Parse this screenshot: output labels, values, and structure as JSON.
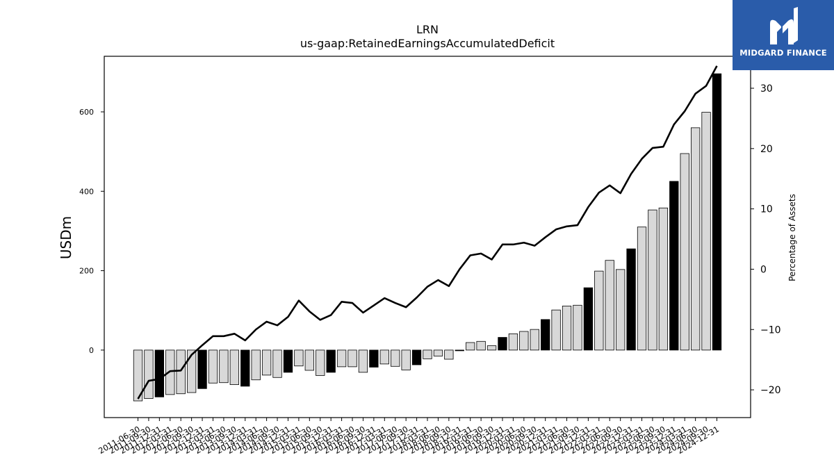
{
  "chart_data": {
    "type": "bar+line",
    "title": "LRN",
    "subtitle": "us-gaap:RetainedEarningsAccumulatedDeficit",
    "ylabel_left": "USDm",
    "ylabel_right": "Percentage of Assets",
    "ylim_left": [
      -170,
      740
    ],
    "ylim_right": [
      -24.6,
      35.3
    ],
    "yticks_left": [
      0,
      200,
      400,
      600
    ],
    "yticks_right": [
      -20,
      -10,
      0,
      10,
      20,
      30
    ],
    "ytick_labels_right": [
      "−20",
      "−10",
      "0",
      "10",
      "20",
      "30"
    ],
    "grid": false,
    "legend": "none",
    "colors": {
      "bar_fy": "#000000",
      "bar_q": "#d8d8d8",
      "bar_edge": "#000000",
      "line": "#000000"
    },
    "x_labels": [
      "2011-06-30",
      "2011-09-30",
      "2011-12-31",
      "2012-03-31",
      "2012-06-30",
      "2012-09-30",
      "2012-12-31",
      "2013-03-31",
      "2013-06-30",
      "2013-09-30",
      "2013-12-31",
      "2014-03-31",
      "2014-06-30",
      "2014-09-30",
      "2014-12-31",
      "2015-03-31",
      "2015-06-30",
      "2015-09-30",
      "2015-12-31",
      "2016-03-31",
      "2016-06-30",
      "2016-09-30",
      "2016-12-31",
      "2017-03-31",
      "2017-06-30",
      "2017-09-30",
      "2017-12-31",
      "2018-03-31",
      "2018-06-30",
      "2018-09-30",
      "2018-12-31",
      "2019-03-31",
      "2019-06-30",
      "2019-09-30",
      "2019-12-31",
      "2020-03-31",
      "2020-06-30",
      "2020-09-30",
      "2020-12-31",
      "2021-03-31",
      "2021-06-30",
      "2021-09-30",
      "2021-12-31",
      "2022-03-31",
      "2022-06-30",
      "2022-09-30",
      "2022-12-31",
      "2023-03-31",
      "2023-06-30",
      "2023-09-30",
      "2023-12-31",
      "2024-03-31",
      "2024-06-30",
      "2024-09-30",
      "2024-12-31"
    ],
    "categories": [
      "2011-06-30",
      "2011-09-30",
      "2011-12-31",
      "2012-03-31",
      "2012-06-30",
      "2012-09-30",
      "2012-12-31",
      "2013-03-31",
      "2013-06-30",
      "2013-09-30",
      "2013-12-31",
      "2014-03-31",
      "2014-06-30",
      "2014-09-30",
      "2014-12-31",
      "2015-03-31",
      "2015-06-30",
      "2015-09-30",
      "2015-12-31",
      "2016-03-31",
      "2016-06-30",
      "2016-09-30",
      "2016-12-31",
      "2017-03-31",
      "2017-06-30",
      "2017-09-30",
      "2017-12-31",
      "2018-03-31",
      "2018-06-30",
      "2018-09-30",
      "2018-12-31",
      "2019-03-31",
      "2019-06-30",
      "2019-09-30",
      "2019-12-31",
      "2020-03-31",
      "2020-06-30",
      "2020-09-30",
      "2020-12-31",
      "2021-03-31",
      "2021-06-30",
      "2021-09-30",
      "2021-12-31",
      "2022-03-31",
      "2022-06-30",
      "2022-09-30",
      "2022-12-31",
      "2023-03-31",
      "2023-06-30",
      "2023-09-30",
      "2023-12-31",
      "2024-03-31",
      "2024-06-30",
      "2024-09-30",
      "2024-12-31"
    ],
    "series": [
      {
        "values": [
          -128,
          -122,
          -118,
          -112,
          -110,
          -107,
          -97,
          -83,
          -82,
          -87,
          -91,
          -75,
          -63,
          -69,
          -56,
          -40,
          -51,
          -64,
          -56,
          -42,
          -42,
          -56,
          -43,
          -35,
          -41,
          -50,
          -37,
          -22,
          -15,
          -23,
          0,
          19,
          22,
          11,
          32,
          41,
          47,
          52,
          77,
          101,
          111,
          113,
          157,
          199,
          226,
          203,
          255,
          310,
          353,
          358,
          425,
          495,
          560,
          599,
          696
        ],
        "fiscal_year_end": [
          false,
          false,
          true,
          false,
          false,
          false,
          true,
          false,
          false,
          false,
          true,
          false,
          false,
          false,
          true,
          false,
          false,
          false,
          true,
          false,
          false,
          false,
          true,
          false,
          false,
          false,
          true,
          false,
          false,
          false,
          true,
          false,
          false,
          false,
          true,
          false,
          false,
          false,
          true,
          false,
          false,
          false,
          true,
          false,
          false,
          false,
          true,
          false,
          false,
          false,
          true,
          false,
          false,
          false,
          true
        ]
      },
      {
        "axis": "right",
        "values": [
          -21.5,
          -18.5,
          -18.2,
          -16.9,
          -16.8,
          -14.2,
          -12.6,
          -11.1,
          -11.1,
          -10.7,
          -11.8,
          -10.0,
          -8.7,
          -9.3,
          -7.9,
          -5.2,
          -7.0,
          -8.4,
          -7.6,
          -5.4,
          -5.6,
          -7.2,
          -6.0,
          -4.8,
          -5.6,
          -6.3,
          -4.7,
          -2.9,
          -1.8,
          -2.8,
          0.0,
          2.3,
          2.6,
          1.6,
          4.1,
          4.1,
          4.4,
          3.9,
          5.3,
          6.6,
          7.1,
          7.3,
          10.3,
          12.7,
          13.9,
          12.6,
          15.8,
          18.3,
          20.1,
          20.3,
          24.0,
          26.2,
          29.1,
          30.4,
          33.7
        ]
      }
    ]
  },
  "logo": {
    "text": "MIDGARD FINANCE"
  }
}
